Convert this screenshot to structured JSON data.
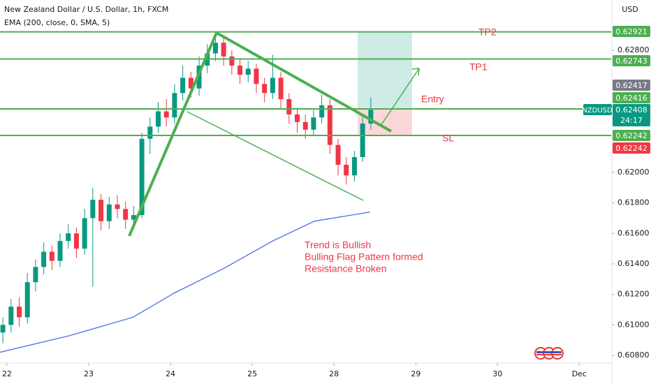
{
  "chart_data": {
    "type": "candlestick",
    "title": "New Zealand Dollar / U.S. Dollar, 1h, FXCM",
    "currency": "USD",
    "up_color": "#089981",
    "down_color": "#f23645",
    "x": [
      -0.05,
      0.05,
      0.15,
      0.25,
      0.35,
      0.45,
      0.55,
      0.65,
      0.75,
      0.85,
      0.95,
      1.05,
      1.15,
      1.25,
      1.35,
      1.45,
      1.55,
      1.65,
      1.75,
      1.85,
      1.95,
      2.05,
      2.15,
      2.25,
      2.35,
      2.45,
      2.55,
      2.65,
      2.75,
      2.85,
      2.95,
      3.05,
      3.15,
      3.25,
      3.35,
      3.45,
      3.55,
      3.65,
      3.75,
      3.85,
      3.95,
      4.05,
      4.15,
      4.25,
      4.35,
      4.45
    ],
    "open": [
      0.6095,
      0.61,
      0.6112,
      0.6105,
      0.6128,
      0.6138,
      0.6148,
      0.6142,
      0.6155,
      0.616,
      0.615,
      0.617,
      0.6182,
      0.6168,
      0.6179,
      0.6176,
      0.6169,
      0.6172,
      0.6222,
      0.623,
      0.624,
      0.6236,
      0.6252,
      0.6262,
      0.6255,
      0.627,
      0.6278,
      0.6285,
      0.6276,
      0.627,
      0.6264,
      0.6268,
      0.6258,
      0.6252,
      0.6262,
      0.6248,
      0.6238,
      0.6233,
      0.6228,
      0.6236,
      0.6244,
      0.6218,
      0.6205,
      0.6198,
      0.621,
      0.6232
    ],
    "high": [
      0.6105,
      0.6117,
      0.6118,
      0.6134,
      0.6143,
      0.6154,
      0.6152,
      0.616,
      0.6166,
      0.6164,
      0.6176,
      0.619,
      0.6186,
      0.6184,
      0.6185,
      0.6181,
      0.6178,
      0.6226,
      0.6236,
      0.6246,
      0.6248,
      0.6258,
      0.627,
      0.6266,
      0.6276,
      0.6284,
      0.6291,
      0.6289,
      0.628,
      0.6274,
      0.6273,
      0.6271,
      0.6262,
      0.6277,
      0.6266,
      0.6252,
      0.6242,
      0.6238,
      0.6241,
      0.6251,
      0.6248,
      0.6222,
      0.621,
      0.6214,
      0.6237,
      0.6249
    ],
    "low": [
      0.6088,
      0.6095,
      0.6099,
      0.6101,
      0.6122,
      0.6133,
      0.6136,
      0.6138,
      0.615,
      0.6144,
      0.6146,
      0.6125,
      0.6162,
      0.6163,
      0.617,
      0.6163,
      0.6164,
      0.617,
      0.6212,
      0.6226,
      0.623,
      0.6232,
      0.6247,
      0.6249,
      0.625,
      0.6265,
      0.6273,
      0.627,
      0.6264,
      0.6258,
      0.6259,
      0.6252,
      0.6246,
      0.6248,
      0.6242,
      0.6232,
      0.6226,
      0.6222,
      0.6224,
      0.6232,
      0.6212,
      0.6198,
      0.6192,
      0.6194,
      0.6207,
      0.6228
    ],
    "close": [
      0.61,
      0.6112,
      0.6105,
      0.6128,
      0.6138,
      0.6148,
      0.6142,
      0.6155,
      0.616,
      0.615,
      0.617,
      0.6182,
      0.6168,
      0.6179,
      0.6176,
      0.6169,
      0.6172,
      0.6222,
      0.623,
      0.624,
      0.6236,
      0.6252,
      0.6262,
      0.6255,
      0.627,
      0.6278,
      0.6285,
      0.6276,
      0.627,
      0.6264,
      0.6268,
      0.6258,
      0.6252,
      0.6262,
      0.6248,
      0.6238,
      0.6233,
      0.6228,
      0.6236,
      0.6244,
      0.6218,
      0.6205,
      0.6198,
      0.621,
      0.6232,
      0.6241
    ],
    "indicator": {
      "name": "EMA (200, close, 0, SMA, 5)",
      "color": "#4a6fe3",
      "x": [
        -0.09,
        0.77,
        1.54,
        2.05,
        2.65,
        3.25,
        3.76,
        4.44
      ],
      "values": [
        0.6082,
        0.6093,
        0.6105,
        0.6121,
        0.6137,
        0.6155,
        0.6168,
        0.6174
      ]
    },
    "levels": [
      {
        "name": "TP2",
        "value": 0.62921,
        "color": "#4caf50"
      },
      {
        "name": "TP1",
        "value": 0.62743,
        "color": "#4caf50"
      },
      {
        "name": "Entry",
        "value": 0.62416,
        "color": "#4caf50"
      },
      {
        "name": "SL",
        "value": 0.62242,
        "color": "#4caf50"
      }
    ],
    "level_text_color": "#f23645",
    "extra_tags": [
      {
        "value": 0.62417,
        "color": "#787b86"
      },
      {
        "value": 0.62242,
        "color": "#f23645"
      }
    ],
    "last_price": {
      "symbol": "NZDUSD",
      "value": 0.62408,
      "countdown": "24:17",
      "color": "#089981"
    },
    "annotations": [
      "Trend is Bullish",
      "Bulling Flag Pattern formed",
      "Resistance Broken"
    ],
    "xlim": [
      -0.085,
      7.39
    ],
    "xticks": [
      {
        "value": 0,
        "label": "22"
      },
      {
        "value": 1,
        "label": "23"
      },
      {
        "value": 2,
        "label": "24"
      },
      {
        "value": 3,
        "label": "25"
      },
      {
        "value": 4,
        "label": "28"
      },
      {
        "value": 5,
        "label": "29"
      },
      {
        "value": 6,
        "label": "30"
      },
      {
        "value": 7,
        "label": "Dec"
      }
    ],
    "ylim": [
      0.6075,
      0.6313
    ],
    "yticks": [
      {
        "value": 0.628,
        "label": "0.62800"
      },
      {
        "value": 0.62,
        "label": "0.62000"
      },
      {
        "value": 0.618,
        "label": "0.61800"
      },
      {
        "value": 0.616,
        "label": "0.61600"
      },
      {
        "value": 0.614,
        "label": "0.61400"
      },
      {
        "value": 0.612,
        "label": "0.61200"
      },
      {
        "value": 0.61,
        "label": "0.61000"
      },
      {
        "value": 0.608,
        "label": "0.60800"
      }
    ],
    "grid": false
  }
}
